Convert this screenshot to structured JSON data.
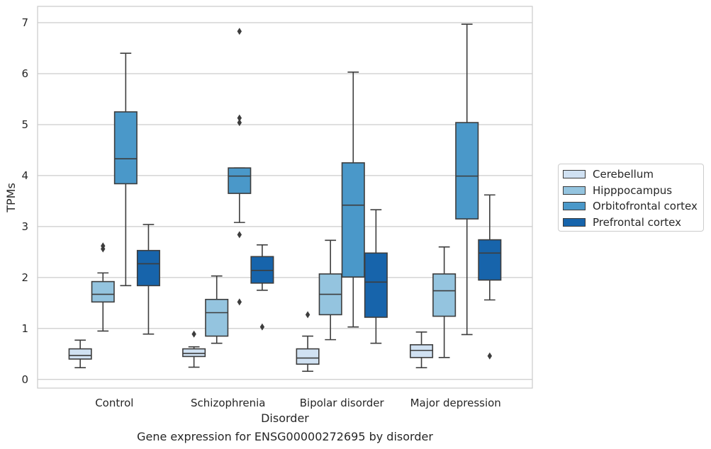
{
  "chart_data": {
    "type": "box",
    "title": "",
    "caption": "Gene expression for ENSG00000272695 by disorder",
    "xlabel": "Disorder",
    "ylabel": "TPMs",
    "categories": [
      "Control",
      "Schizophrenia",
      "Bipolar disorder",
      "Major depression"
    ],
    "ylim": [
      -0.17,
      7.32
    ],
    "yticks": [
      0,
      1,
      2,
      3,
      4,
      5,
      6,
      7
    ],
    "grid": "horizontal",
    "legend_position": "right",
    "series": [
      {
        "name": "Cerebellum",
        "color": "#d0e1f2",
        "boxes": [
          {
            "whisker_low": 0.23,
            "q1": 0.4,
            "median": 0.47,
            "q3": 0.6,
            "whisker_high": 0.77,
            "outliers": []
          },
          {
            "whisker_low": 0.24,
            "q1": 0.45,
            "median": 0.51,
            "q3": 0.6,
            "whisker_high": 0.64,
            "outliers": [
              0.89
            ]
          },
          {
            "whisker_low": 0.16,
            "q1": 0.3,
            "median": 0.42,
            "q3": 0.6,
            "whisker_high": 0.85,
            "outliers": [
              1.27
            ]
          },
          {
            "whisker_low": 0.23,
            "q1": 0.43,
            "median": 0.57,
            "q3": 0.68,
            "whisker_high": 0.93,
            "outliers": []
          }
        ]
      },
      {
        "name": "Hipppocampus",
        "color": "#94c4df",
        "boxes": [
          {
            "whisker_low": 0.95,
            "q1": 1.52,
            "median": 1.67,
            "q3": 1.92,
            "whisker_high": 2.09,
            "outliers": [
              2.56,
              2.62
            ]
          },
          {
            "whisker_low": 0.71,
            "q1": 0.85,
            "median": 1.31,
            "q3": 1.57,
            "whisker_high": 2.03,
            "outliers": []
          },
          {
            "whisker_low": 0.78,
            "q1": 1.27,
            "median": 1.67,
            "q3": 2.07,
            "whisker_high": 2.73,
            "outliers": []
          },
          {
            "whisker_low": 0.43,
            "q1": 1.24,
            "median": 1.74,
            "q3": 2.07,
            "whisker_high": 2.6,
            "outliers": []
          }
        ]
      },
      {
        "name": "Orbitofrontal cortex",
        "color": "#4a98c9",
        "boxes": [
          {
            "whisker_low": 1.84,
            "q1": 3.84,
            "median": 4.33,
            "q3": 5.25,
            "whisker_high": 6.4,
            "outliers": []
          },
          {
            "whisker_low": 3.08,
            "q1": 3.65,
            "median": 3.99,
            "q3": 4.15,
            "whisker_high": 4.15,
            "outliers": [
              6.83,
              5.13,
              5.04,
              2.84,
              1.52
            ]
          },
          {
            "whisker_low": 1.03,
            "q1": 2.01,
            "median": 3.42,
            "q3": 4.25,
            "whisker_high": 6.03,
            "outliers": []
          },
          {
            "whisker_low": 0.88,
            "q1": 3.15,
            "median": 3.99,
            "q3": 5.04,
            "whisker_high": 6.97,
            "outliers": []
          }
        ]
      },
      {
        "name": "Prefrontal cortex",
        "color": "#1764ab",
        "boxes": [
          {
            "whisker_low": 0.89,
            "q1": 1.84,
            "median": 2.27,
            "q3": 2.53,
            "whisker_high": 3.04,
            "outliers": []
          },
          {
            "whisker_low": 1.75,
            "q1": 1.89,
            "median": 2.14,
            "q3": 2.41,
            "whisker_high": 2.64,
            "outliers": [
              1.03
            ]
          },
          {
            "whisker_low": 0.71,
            "q1": 1.22,
            "median": 1.91,
            "q3": 2.48,
            "whisker_high": 3.33,
            "outliers": []
          },
          {
            "whisker_low": 1.56,
            "q1": 1.95,
            "median": 2.48,
            "q3": 2.74,
            "whisker_high": 3.62,
            "outliers": [
              0.46
            ]
          }
        ]
      }
    ]
  }
}
